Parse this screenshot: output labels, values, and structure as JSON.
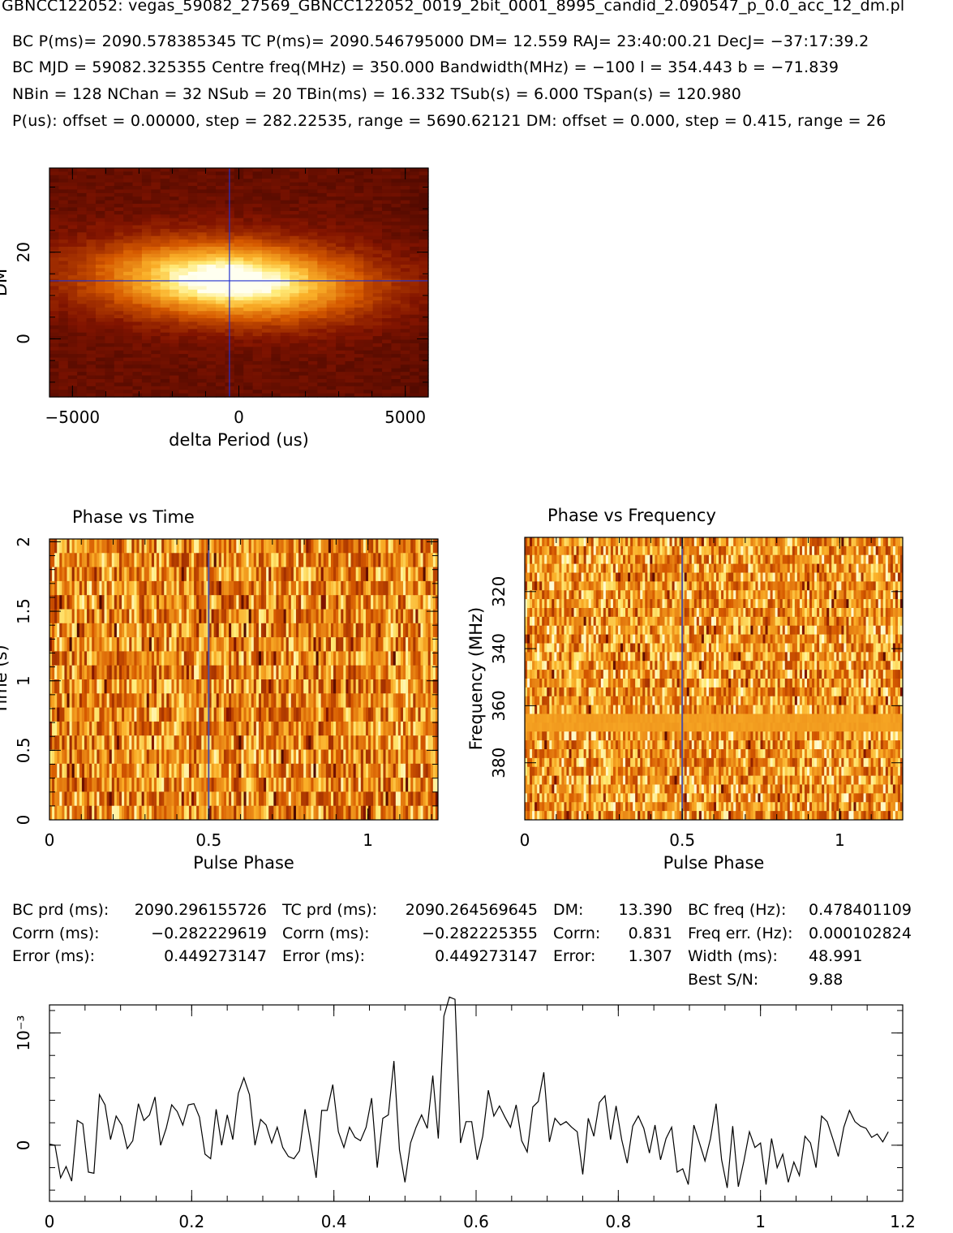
{
  "header": {
    "file_line": "GBNCC122052: vegas_59082_27569_GBNCC122052_0019_2bit_0001_8995_candid_2.090547_p_0.0_acc_12_dm.pl",
    "line1": "BC P(ms)= 2090.578385345  TC P(ms)= 2090.546795000  DM= 12.559  RAJ= 23:40:00.21  DecJ= −37:17:39.2",
    "line2": "BC MJD = 59082.325355  Centre freq(MHz) = 350.000  Bandwidth(MHz) = −100  l = 354.443  b = −71.839",
    "line3": "NBin = 128  NChan = 32  NSub = 20  TBin(ms) = 16.332  TSub(s) = 6.000  TSpan(s) = 120.980",
    "line4": "P(us): offset = 0.00000, step = 282.22535, range = 5690.62121  DM: offset = 0.000, step = 0.415, range = 26"
  },
  "stats": {
    "bc_prd_label": "BC prd (ms):",
    "bc_prd": "2090.296155726",
    "tc_prd_label": "TC prd (ms):",
    "tc_prd": "2090.264569645",
    "dm_label": "DM:",
    "dm": "13.390",
    "bc_freq_label": "BC freq (Hz):",
    "bc_freq": "0.478401109",
    "corrn1_label": "Corrn (ms):",
    "corrn1": "−0.282229619",
    "corrn2_label": "Corrn (ms):",
    "corrn2": "−0.282225355",
    "dm_corrn_label": "Corrn:",
    "dm_corrn": "0.831",
    "freq_err_label": "Freq err. (Hz):",
    "freq_err": "0.000102824",
    "error1_label": "Error (ms):",
    "error1": "0.449273147",
    "error2_label": "Error (ms):",
    "error2": "0.449273147",
    "dm_error_label": "Error:",
    "dm_error": "1.307",
    "width_label": "Width (ms):",
    "width": "48.991",
    "best_sn_label": "Best S/N:",
    "best_sn": "9.88"
  },
  "chart_data": [
    {
      "type": "heatmap",
      "title": "",
      "xlabel": "delta Period (us)",
      "ylabel": "DM",
      "xlim": [
        -5690.6,
        5690.6
      ],
      "ylim": [
        -13.4,
        39.4
      ],
      "xticks": [
        -5000,
        0,
        5000
      ],
      "xtick_labels": [
        "−5000",
        "0",
        "5000"
      ],
      "yticks": [
        0,
        20
      ],
      "ytick_labels": [
        "0",
        "20"
      ],
      "peak": {
        "x": -282.2,
        "y": 13.39
      },
      "colormap": [
        "#300000",
        "#8a1500",
        "#d35400",
        "#f5a623",
        "#ffffff"
      ]
    },
    {
      "type": "heatmap",
      "title": "Phase vs Time",
      "xlabel": "Pulse Phase",
      "ylabel": "Time (s)",
      "xlim": [
        0,
        1.22
      ],
      "ylim": [
        0,
        2.02
      ],
      "xticks": [
        0,
        0.5,
        1
      ],
      "xtick_labels": [
        "0",
        "0.5",
        "1"
      ],
      "yticks": [
        0,
        0.5,
        1,
        1.5,
        2
      ],
      "ytick_labels": [
        "0",
        "0.5",
        "1",
        "1.5",
        "2"
      ],
      "marker_phase": 0.5,
      "rows": 20,
      "cols": 156
    },
    {
      "type": "heatmap",
      "title": "Phase vs Frequency",
      "xlabel": "Pulse Phase",
      "ylabel": "Frequency (MHz)",
      "xlim": [
        0,
        1.2
      ],
      "ylim": [
        400,
        301
      ],
      "xticks": [
        0,
        0.5,
        1
      ],
      "xtick_labels": [
        "0",
        "0.5",
        "1"
      ],
      "yticks": [
        320,
        340,
        360,
        380
      ],
      "ytick_labels": [
        "320",
        "340",
        "360",
        "380"
      ],
      "marker_phase": 0.5,
      "flat_channel_mhz": 367,
      "rows": 32,
      "cols": 154
    },
    {
      "type": "line",
      "title": "",
      "xlabel": "",
      "ylabel": "",
      "xlim": [
        0,
        1.2
      ],
      "ylim": [
        -0.0005,
        0.00125
      ],
      "xticks": [
        0,
        0.2,
        0.4,
        0.6,
        0.8,
        1,
        1.2
      ],
      "xtick_labels": [
        "0",
        "0.2",
        "0.4",
        "0.6",
        "0.8",
        "1",
        "1.2"
      ],
      "yticks": [
        0,
        0.001
      ],
      "ytick_labels": [
        "0",
        "10⁻³"
      ],
      "x": [
        0.0,
        0.0078,
        0.0156,
        0.0234,
        0.0313,
        0.0391,
        0.0469,
        0.0547,
        0.0625,
        0.0703,
        0.0781,
        0.0859,
        0.0938,
        0.1016,
        0.1094,
        0.1172,
        0.125,
        0.1328,
        0.1406,
        0.1484,
        0.1563,
        0.1641,
        0.1719,
        0.1797,
        0.1875,
        0.1953,
        0.2031,
        0.2109,
        0.2188,
        0.2266,
        0.2344,
        0.2422,
        0.25,
        0.2578,
        0.2656,
        0.2734,
        0.2813,
        0.2891,
        0.2969,
        0.3047,
        0.3125,
        0.3203,
        0.3281,
        0.3359,
        0.3438,
        0.3516,
        0.3594,
        0.3672,
        0.375,
        0.3828,
        0.3906,
        0.3984,
        0.4063,
        0.4141,
        0.4219,
        0.4297,
        0.4375,
        0.4453,
        0.4531,
        0.4609,
        0.4688,
        0.4766,
        0.4844,
        0.4922,
        0.5,
        0.5078,
        0.5156,
        0.5234,
        0.5313,
        0.5391,
        0.5469,
        0.5547,
        0.5625,
        0.5703,
        0.5781,
        0.5859,
        0.5938,
        0.6016,
        0.6094,
        0.6172,
        0.625,
        0.6328,
        0.6406,
        0.6484,
        0.6563,
        0.6641,
        0.6719,
        0.6797,
        0.6875,
        0.6953,
        0.7031,
        0.7109,
        0.7188,
        0.7266,
        0.7344,
        0.7422,
        0.75,
        0.7578,
        0.7656,
        0.7734,
        0.7813,
        0.7891,
        0.7969,
        0.8047,
        0.8125,
        0.8203,
        0.8281,
        0.8359,
        0.8438,
        0.8516,
        0.8594,
        0.8672,
        0.875,
        0.8828,
        0.8906,
        0.8984,
        0.9063,
        0.9141,
        0.9219,
        0.9297,
        0.9375,
        0.9453,
        0.9531,
        0.9609,
        0.9688,
        0.9766,
        0.9844,
        0.9922,
        1.0,
        1.0078,
        1.0156,
        1.0234,
        1.0313,
        1.0391,
        1.0469,
        1.0547,
        1.0625,
        1.0703,
        1.0781,
        1.0859,
        1.0938,
        1.1016,
        1.1094,
        1.1172,
        1.125,
        1.1328,
        1.1406,
        1.1484,
        1.1563,
        1.1641,
        1.1719,
        1.1797
      ],
      "y": [
        1e-05,
        0.0,
        -0.00029,
        -0.00019,
        -0.00032,
        0.00022,
        0.00019,
        -0.00024,
        -0.00025,
        0.00045,
        0.00036,
        5e-05,
        0.00026,
        0.00018,
        -3e-05,
        4e-05,
        0.00037,
        0.00022,
        0.00027,
        0.00043,
        0.0,
        0.00015,
        0.00036,
        0.0003,
        0.00018,
        0.00036,
        0.00037,
        0.00025,
        -8e-05,
        -0.00012,
        0.00032,
        0.0,
        0.00027,
        5e-05,
        0.00046,
        0.0006,
        0.00045,
        0.0,
        0.00023,
        0.00018,
        2e-05,
        0.00016,
        -2e-05,
        -0.0001,
        -0.00012,
        -5e-05,
        0.00032,
        3e-05,
        -0.00029,
        0.00031,
        0.00031,
        0.00054,
        0.00012,
        -2e-05,
        0.00016,
        7e-05,
        4e-05,
        0.00016,
        0.00042,
        -0.0002,
        0.00024,
        0.00027,
        0.00075,
        -4e-05,
        -0.00033,
        2e-05,
        0.00016,
        0.00027,
        0.00015,
        0.00062,
        6e-05,
        0.00115,
        0.00132,
        0.0013,
        2e-05,
        0.00021,
        0.00021,
        -0.00013,
        8e-05,
        0.00049,
        0.00026,
        0.00035,
        0.00025,
        0.00016,
        0.00036,
        4e-05,
        -6e-05,
        0.00034,
        0.00039,
        0.00065,
        3e-05,
        0.00024,
        0.00018,
        0.00021,
        0.00016,
        0.00012,
        -0.00026,
        0.00024,
        8e-05,
        0.00038,
        0.00044,
        5e-05,
        0.00035,
        5e-05,
        -0.00016,
        0.00017,
        0.00026,
        0.00015,
        -7e-05,
        0.00018,
        -0.00013,
        6e-05,
        0.00016,
        -0.00024,
        -0.00021,
        -0.00035,
        0.00018,
        2e-05,
        -0.00014,
        6e-05,
        0.00037,
        -0.00013,
        -0.00038,
        0.00017,
        -0.00037,
        -0.00014,
        0.00012,
        -2e-05,
        2e-05,
        -0.00035,
        6e-05,
        -0.0002,
        -8e-05,
        -0.00033,
        -0.00015,
        -0.00027,
        8e-05,
        2e-05,
        -0.0002,
        0.00026,
        0.00021,
        6e-05,
        -0.0001,
        0.00016,
        0.00031,
        0.00021,
        0.00017,
        0.00015,
        7e-05,
        0.0001,
        3e-05,
        0.00012
      ]
    }
  ]
}
